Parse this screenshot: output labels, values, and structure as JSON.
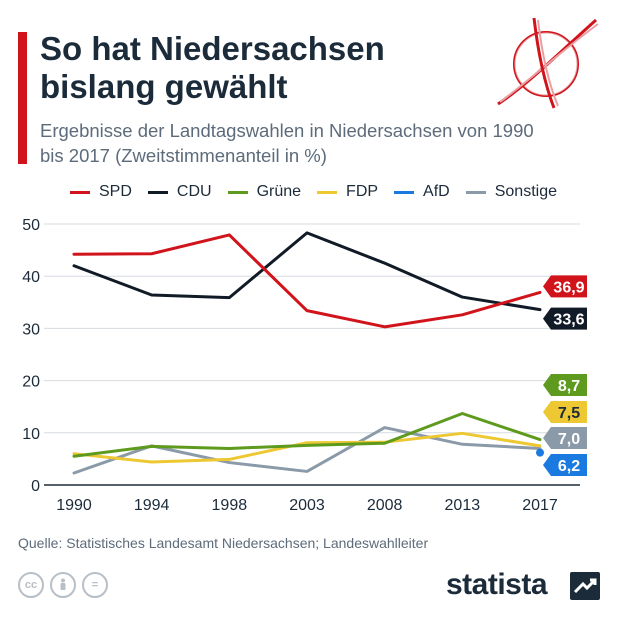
{
  "header": {
    "title": "So hat Niedersachsen bislang gewählt",
    "subtitle": "Ergebnisse der Landtagswahlen in Niedersachsen von 1990 bis 2017 (Zweitstimmenanteil in %)"
  },
  "footer": {
    "source": "Quelle: Statistisches Landesamt Niedersachsen; Landeswahlleiter",
    "brand": "statista",
    "cc_icons": [
      "creative-commons-icon",
      "attribution-icon",
      "no-derivatives-icon"
    ]
  },
  "colors": {
    "accent": "#d1141b",
    "SPD": "#d1141b",
    "CDU": "#111a27",
    "Grüne": "#5e9a1d",
    "FDP": "#edc832",
    "AfD": "#1b7ae0",
    "Sonstige": "#8b9aa8"
  },
  "chart_data": {
    "type": "line",
    "x": [
      "1990",
      "1994",
      "1998",
      "2003",
      "2008",
      "2013",
      "2017"
    ],
    "ylim": [
      0,
      50
    ],
    "yticks": [
      0,
      10,
      20,
      30,
      40,
      50
    ],
    "grid": true,
    "legend_position": "top",
    "series": [
      {
        "name": "SPD",
        "values": [
          44.2,
          44.3,
          47.9,
          33.4,
          30.3,
          32.6,
          36.9
        ],
        "end_label": "36,9"
      },
      {
        "name": "CDU",
        "values": [
          42.0,
          36.4,
          35.9,
          48.3,
          42.5,
          36.0,
          33.6
        ],
        "end_label": "33,6"
      },
      {
        "name": "Grüne",
        "values": [
          5.5,
          7.4,
          7.0,
          7.6,
          8.0,
          13.7,
          8.7
        ],
        "end_label": "8,7"
      },
      {
        "name": "FDP",
        "values": [
          6.0,
          4.4,
          4.9,
          8.1,
          8.2,
          9.9,
          7.5
        ],
        "end_label": "7,5"
      },
      {
        "name": "AfD",
        "values": [
          null,
          null,
          null,
          null,
          null,
          null,
          6.2
        ],
        "end_label": "6,2"
      },
      {
        "name": "Sonstige",
        "values": [
          2.3,
          7.5,
          4.3,
          2.6,
          11.0,
          7.8,
          7.0
        ],
        "end_label": "7,0"
      }
    ]
  }
}
